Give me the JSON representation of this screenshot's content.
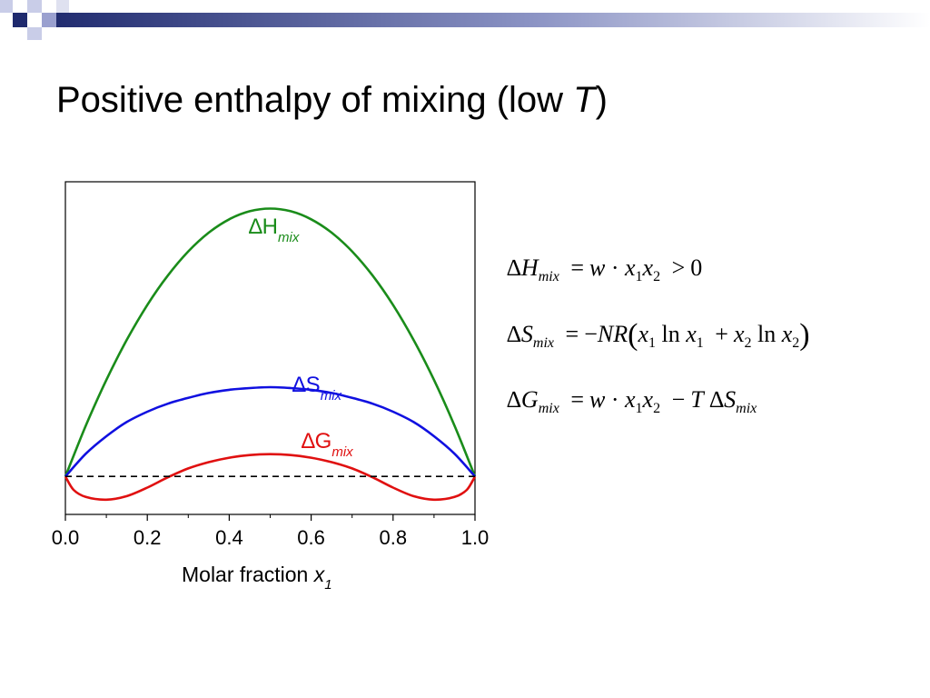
{
  "slide": {
    "title_main": "Positive enthalpy of mixing (low ",
    "title_var": "T",
    "title_end": ")"
  },
  "colors": {
    "green": "#1a8c1a",
    "blue": "#1010e0",
    "red": "#e01010",
    "text": "#000000"
  },
  "chart_data": {
    "type": "line",
    "xlabel_main": "Molar fraction ",
    "xlabel_var": "x",
    "xlabel_sub": "1",
    "xlim": [
      0,
      1
    ],
    "ylim": [
      -0.085,
      0.66
    ],
    "x_ticks": [
      "0.0",
      "0.2",
      "0.4",
      "0.6",
      "0.8",
      "1.0"
    ],
    "grid": false,
    "series": [
      {
        "name_main": "∆H",
        "name_sub": "mix",
        "color": "#1a8c1a",
        "x": [
          0,
          0.05,
          0.1,
          0.15,
          0.2,
          0.25,
          0.3,
          0.35,
          0.4,
          0.45,
          0.5,
          0.55,
          0.6,
          0.65,
          0.7,
          0.75,
          0.8,
          0.85,
          0.9,
          0.95,
          1.0
        ],
        "y": [
          0,
          0.114,
          0.216,
          0.306,
          0.384,
          0.45,
          0.504,
          0.546,
          0.576,
          0.594,
          0.6,
          0.594,
          0.576,
          0.546,
          0.504,
          0.45,
          0.384,
          0.306,
          0.216,
          0.114,
          0
        ]
      },
      {
        "name_main": "∆S",
        "name_sub": "mix",
        "color": "#1010e0",
        "x": [
          0,
          0.05,
          0.1,
          0.15,
          0.2,
          0.25,
          0.3,
          0.35,
          0.4,
          0.45,
          0.5,
          0.55,
          0.6,
          0.65,
          0.7,
          0.75,
          0.8,
          0.85,
          0.9,
          0.95,
          1.0
        ],
        "y": [
          0,
          0.051,
          0.09,
          0.122,
          0.145,
          0.163,
          0.176,
          0.187,
          0.194,
          0.198,
          0.2,
          0.198,
          0.194,
          0.187,
          0.176,
          0.163,
          0.145,
          0.122,
          0.09,
          0.051,
          0
        ]
      },
      {
        "name_main": "∆G",
        "name_sub": "mix",
        "color": "#e01010",
        "x": [
          0,
          0.02,
          0.05,
          0.1,
          0.15,
          0.2,
          0.25,
          0.3,
          0.35,
          0.4,
          0.45,
          0.5,
          0.55,
          0.6,
          0.65,
          0.7,
          0.75,
          0.8,
          0.85,
          0.9,
          0.95,
          0.98,
          1.0
        ],
        "y": [
          0,
          -0.03,
          -0.046,
          -0.052,
          -0.044,
          -0.025,
          -0.002,
          0.018,
          0.032,
          0.042,
          0.048,
          0.05,
          0.048,
          0.042,
          0.032,
          0.018,
          -0.002,
          -0.025,
          -0.044,
          -0.052,
          -0.046,
          -0.03,
          0
        ]
      },
      {
        "name_main": "",
        "name_sub": "",
        "color": "#000000",
        "dashed": true,
        "x": [
          0,
          1
        ],
        "y": [
          0,
          0
        ]
      }
    ]
  },
  "equations": {
    "eq1": {
      "lhs_delta": "∆",
      "lhs_var": "H",
      "lhs_sub": "mix",
      "eq": "=",
      "w": "w",
      "dot": "·",
      "x": "x",
      "s1": "1",
      "s2": "2",
      "gt": ">",
      "zero": "0"
    },
    "eq2": {
      "lhs_delta": "∆",
      "lhs_var": "S",
      "lhs_sub": "mix",
      "eq": "=",
      "minus": "−",
      "nr": "NR",
      "lparen": "(",
      "x": "x",
      "s1": "1",
      "s2": "2",
      "ln": "ln",
      "plus": "+",
      "rparen": ")"
    },
    "eq3": {
      "lhs_delta": "∆",
      "lhs_var": "G",
      "lhs_sub": "mix",
      "eq": "=",
      "w": "w",
      "dot": "·",
      "x": "x",
      "s1": "1",
      "s2": "2",
      "minus": "−",
      "t": "T",
      "delta": "∆",
      "s": "S",
      "s_sub": "mix"
    }
  }
}
